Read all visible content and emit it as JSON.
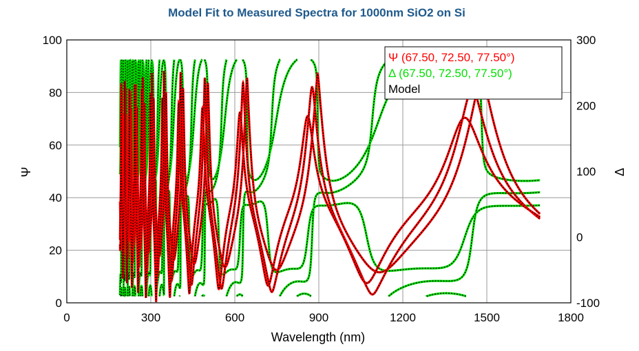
{
  "chart_data": {
    "type": "line",
    "title": "Model Fit to Measured Spectra for 1000nm SiO2 on Si",
    "xlabel": "Wavelength (nm)",
    "ylabel_left": "Ψ",
    "ylabel_right": "Δ",
    "xlim": [
      0,
      1800
    ],
    "ylim_left": [
      0,
      100
    ],
    "ylim_right": [
      -100,
      300
    ],
    "xticks": [
      "0",
      "300",
      "600",
      "900",
      "1200",
      "1500",
      "1800"
    ],
    "yticks_left": [
      "0",
      "20",
      "40",
      "60",
      "80",
      "100"
    ],
    "yticks_right": [
      "-100",
      "0",
      "100",
      "200",
      "300"
    ],
    "grid": true,
    "legend_position": "top-right",
    "legend": [
      {
        "label": "Ψ (67.50, 72.50, 77.50°)",
        "color": "#ff0000"
      },
      {
        "label": "Δ (67.50, 72.50, 77.50°)",
        "color": "#00e000"
      },
      {
        "label": "Model",
        "color": "#000000"
      }
    ],
    "series": [
      {
        "name": "Ψ (67.50, 72.50, 77.50°)",
        "axis": "left",
        "color": "#ff0000",
        "wavelength_range": [
          190,
          1690
        ],
        "angles": [
          67.5,
          72.5,
          77.5
        ],
        "peaks": [
          [
            1470,
            80
          ],
          [
            1440,
            75
          ],
          [
            1420,
            70
          ],
          [
            870,
            83
          ],
          [
            860,
            78
          ],
          [
            640,
            84
          ],
          [
            490,
            80
          ]
        ],
        "minima": [
          [
            1090,
            3
          ],
          [
            1070,
            7
          ],
          [
            1110,
            11
          ],
          [
            740,
            5
          ],
          [
            720,
            9
          ]
        ],
        "end_values": [
          33,
          35,
          37
        ]
      },
      {
        "name": "Δ (67.50, 72.50, 77.50°)",
        "axis": "right",
        "color": "#00e000",
        "wavelength_range": [
          190,
          1690
        ],
        "angles": [
          67.5,
          72.5,
          77.5
        ],
        "high": 268,
        "low": -90,
        "end_values": [
          85,
          67,
          47
        ]
      }
    ]
  }
}
